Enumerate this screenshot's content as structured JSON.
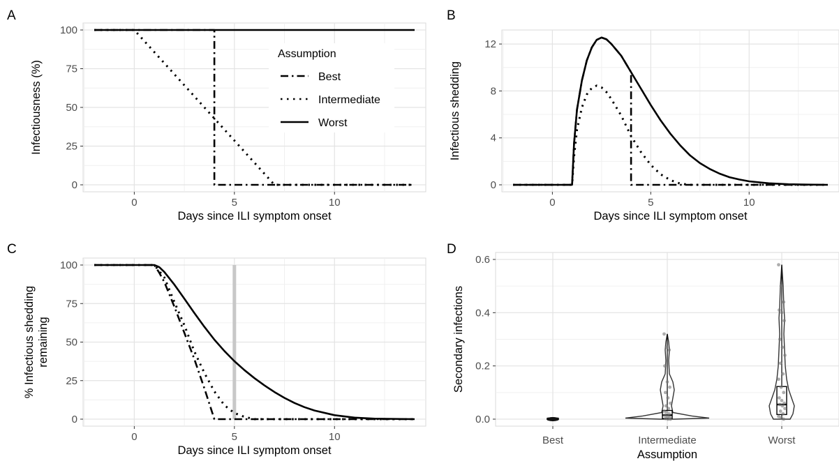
{
  "chart_data": [
    {
      "panel": "A",
      "type": "line",
      "xlabel": "Days since ILI symptom onset",
      "ylabel": "Infectiousness (%)",
      "xlim": [
        -2,
        14
      ],
      "ylim": [
        0,
        100
      ],
      "xticks": [
        0,
        5,
        10
      ],
      "yticks": [
        0,
        25,
        50,
        75,
        100
      ],
      "grid": true,
      "legend": {
        "title": "Assumption",
        "position": "inside-top-right",
        "items": [
          "Best",
          "Intermediate",
          "Worst"
        ]
      },
      "series": [
        {
          "name": "Best",
          "style": "dashdot",
          "x": [
            -2,
            4,
            4,
            14
          ],
          "y": [
            100,
            100,
            0,
            0
          ]
        },
        {
          "name": "Intermediate",
          "style": "dotted",
          "x": [
            -2,
            0,
            7,
            14
          ],
          "y": [
            100,
            100,
            0,
            0
          ]
        },
        {
          "name": "Worst",
          "style": "solid",
          "x": [
            -2,
            14
          ],
          "y": [
            100,
            100
          ]
        }
      ]
    },
    {
      "panel": "B",
      "type": "line",
      "xlabel": "Days since ILI symptom onset",
      "ylabel": "Infectious shedding",
      "xlim": [
        -2,
        14
      ],
      "ylim": [
        0,
        12.6
      ],
      "xticks": [
        0,
        5,
        10
      ],
      "yticks": [
        0,
        4,
        8,
        12
      ],
      "grid": true,
      "series": [
        {
          "name": "Worst",
          "style": "solid",
          "x": [
            -2,
            1,
            1.1,
            1.25,
            1.5,
            1.75,
            2,
            2.25,
            2.5,
            2.75,
            3,
            3.5,
            4,
            4.5,
            5,
            5.5,
            6,
            6.5,
            7,
            7.5,
            8,
            8.5,
            9,
            9.5,
            10,
            11,
            12,
            13,
            14
          ],
          "y": [
            0,
            0,
            3.5,
            6.4,
            8.9,
            10.6,
            11.7,
            12.35,
            12.55,
            12.4,
            12.0,
            11.0,
            9.6,
            8.2,
            6.8,
            5.5,
            4.35,
            3.35,
            2.5,
            1.85,
            1.35,
            0.95,
            0.65,
            0.45,
            0.3,
            0.13,
            0.05,
            0.02,
            0
          ]
        },
        {
          "name": "Intermediate",
          "style": "dotted",
          "x": [
            -2,
            1,
            1.1,
            1.25,
            1.5,
            1.75,
            2,
            2.25,
            2.5,
            2.75,
            3,
            3.5,
            4,
            4.5,
            5,
            5.5,
            6,
            6.5,
            7,
            14
          ],
          "y": [
            0,
            0,
            2.4,
            4.7,
            6.6,
            7.7,
            8.25,
            8.45,
            8.3,
            7.9,
            7.3,
            5.9,
            4.15,
            2.8,
            1.7,
            0.9,
            0.4,
            0.1,
            0,
            0
          ]
        },
        {
          "name": "Best",
          "style": "dashdot",
          "x": [
            -2,
            1,
            1.1,
            1.25,
            1.5,
            1.75,
            2,
            2.25,
            2.5,
            2.75,
            3,
            3.5,
            4,
            4,
            14
          ],
          "y": [
            0,
            0,
            3.5,
            6.4,
            8.9,
            10.6,
            11.7,
            12.35,
            12.55,
            12.4,
            12.0,
            11.0,
            9.6,
            0,
            0
          ]
        }
      ]
    },
    {
      "panel": "C",
      "type": "line",
      "xlabel": "Days since ILI symptom onset",
      "ylabel": "% Infectious shedding remaining",
      "xlim": [
        -2,
        14
      ],
      "ylim": [
        0,
        100
      ],
      "xticks": [
        0,
        5,
        10
      ],
      "yticks": [
        0,
        25,
        50,
        75,
        100
      ],
      "grid": true,
      "reference_line": {
        "x": 5,
        "color": "#c8c8c8"
      },
      "series": [
        {
          "name": "Worst",
          "style": "solid",
          "x": [
            -2,
            1,
            1.25,
            1.5,
            2,
            2.5,
            3,
            3.5,
            4,
            4.5,
            5,
            5.5,
            6,
            6.5,
            7,
            7.5,
            8,
            8.5,
            9,
            10,
            11,
            12,
            14
          ],
          "y": [
            100,
            100,
            98.6,
            95.5,
            87.3,
            78.2,
            68.9,
            59.9,
            51.6,
            44.2,
            37.6,
            31.8,
            26.6,
            21.9,
            17.6,
            13.8,
            10.5,
            7.8,
            5.6,
            2.6,
            1.0,
            0.3,
            0
          ]
        },
        {
          "name": "Intermediate",
          "style": "dotted",
          "x": [
            -2,
            1,
            1.25,
            1.5,
            2,
            2.5,
            3,
            3.5,
            4,
            4.5,
            5,
            5.5,
            6,
            14
          ],
          "y": [
            100,
            100,
            96,
            92,
            76,
            61,
            44,
            30,
            18,
            9,
            4,
            1.5,
            0,
            0
          ]
        },
        {
          "name": "Best",
          "style": "dashdot",
          "x": [
            -2,
            1,
            1.25,
            1.5,
            2,
            2.5,
            3,
            3.5,
            4,
            14
          ],
          "y": [
            100,
            100,
            95,
            89,
            73,
            56,
            39,
            20,
            0,
            0
          ]
        }
      ]
    },
    {
      "panel": "D",
      "type": "violin",
      "xlabel": "Assumption",
      "ylabel": "Secondary infections",
      "categories": [
        "Best",
        "Intermediate",
        "Worst"
      ],
      "ylim": [
        0,
        0.6
      ],
      "yticks": [
        "0.0",
        "0.2",
        "0.4",
        "0.6"
      ],
      "grid": true,
      "summary": [
        {
          "name": "Best",
          "min": 0,
          "q1": 0,
          "median": 0,
          "q3": 0,
          "max": 0.005
        },
        {
          "name": "Intermediate",
          "min": 0,
          "q1": 0.005,
          "median": 0.015,
          "q3": 0.03,
          "max": 0.32
        },
        {
          "name": "Worst",
          "min": 0,
          "q1": 0.02,
          "median": 0.055,
          "q3": 0.12,
          "max": 0.58
        }
      ],
      "points": [
        {
          "name": "Intermediate",
          "values": [
            0.32,
            0.27,
            0.26,
            0.2,
            0.14,
            0.12,
            0.1,
            0.08,
            0.06,
            0.05,
            0.04,
            0.03,
            0.025,
            0.02,
            0.015,
            0.01,
            0.005,
            0.002,
            0,
            0
          ]
        },
        {
          "name": "Worst",
          "values": [
            0.58,
            0.5,
            0.44,
            0.41,
            0.4,
            0.37,
            0.3,
            0.27,
            0.24,
            0.21,
            0.17,
            0.15,
            0.12,
            0.1,
            0.08,
            0.07,
            0.06,
            0.055,
            0.05,
            0.04,
            0.03,
            0.02,
            0.01,
            0.005,
            0
          ]
        }
      ]
    }
  ]
}
